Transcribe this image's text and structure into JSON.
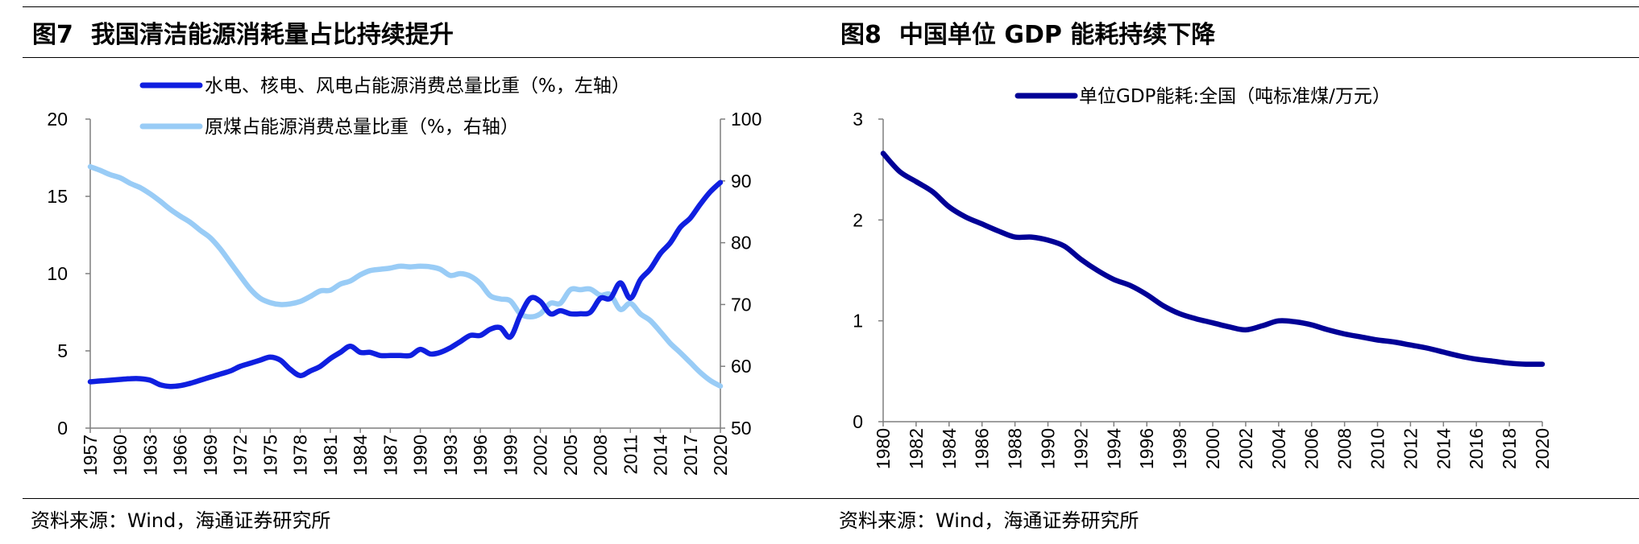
{
  "figures": [
    {
      "number": "图7",
      "title": "我国清洁能源消耗量占比持续提升",
      "source": "资料来源：Wind，海通证券研究所"
    },
    {
      "number": "图8",
      "title": "中国单位 GDP 能耗持续下降",
      "source": "资料来源：Wind，海通证券研究所"
    }
  ],
  "chart_data": [
    {
      "type": "line",
      "title": "",
      "xlabel": "",
      "ylabel": "",
      "legend_position": "top-center",
      "grid": false,
      "x_ticks": [
        "1957",
        "1960",
        "1963",
        "1966",
        "1969",
        "1972",
        "1975",
        "1978",
        "1981",
        "1984",
        "1987",
        "1990",
        "1993",
        "1996",
        "1999",
        "2002",
        "2005",
        "2008",
        "2011",
        "2014",
        "2017",
        "2020"
      ],
      "xlim": [
        1957,
        2020
      ],
      "y_left": {
        "ylim": [
          0,
          20
        ],
        "ticks": [
          "0",
          "5",
          "10",
          "15",
          "20"
        ]
      },
      "y_right": {
        "ylim": [
          50,
          100
        ],
        "ticks": [
          "50",
          "60",
          "70",
          "80",
          "90",
          "100"
        ]
      },
      "series": [
        {
          "name": "水电、核电、风电占能源消费总量比重（%，左轴）",
          "axis": "left",
          "color": "#0f1fe0",
          "x": [
            1957,
            1958,
            1959,
            1960,
            1961,
            1962,
            1963,
            1964,
            1965,
            1966,
            1967,
            1968,
            1969,
            1970,
            1971,
            1972,
            1973,
            1974,
            1975,
            1976,
            1977,
            1978,
            1979,
            1980,
            1981,
            1982,
            1983,
            1984,
            1985,
            1986,
            1987,
            1988,
            1989,
            1990,
            1991,
            1992,
            1993,
            1994,
            1995,
            1996,
            1997,
            1998,
            1999,
            2000,
            2001,
            2002,
            2003,
            2004,
            2005,
            2006,
            2007,
            2008,
            2009,
            2010,
            2011,
            2012,
            2013,
            2014,
            2015,
            2016,
            2017,
            2018,
            2019,
            2020
          ],
          "values": [
            3.0,
            3.05,
            3.1,
            3.15,
            3.2,
            3.2,
            3.1,
            2.8,
            2.7,
            2.75,
            2.9,
            3.1,
            3.3,
            3.5,
            3.7,
            4.0,
            4.2,
            4.4,
            4.6,
            4.4,
            3.8,
            3.4,
            3.7,
            4.0,
            4.5,
            4.9,
            5.3,
            4.9,
            4.9,
            4.7,
            4.7,
            4.7,
            4.7,
            5.1,
            4.8,
            4.9,
            5.2,
            5.6,
            6.0,
            6.0,
            6.4,
            6.5,
            5.9,
            7.3,
            8.4,
            8.2,
            7.4,
            7.6,
            7.4,
            7.4,
            7.5,
            8.4,
            8.4,
            9.4,
            8.4,
            9.6,
            10.3,
            11.3,
            12.0,
            13.0,
            13.6,
            14.5,
            15.3,
            15.9
          ]
        },
        {
          "name": "原煤占能源消费总量比重（%，右轴）",
          "axis": "right",
          "color": "#99ccf6",
          "x": [
            1957,
            1958,
            1959,
            1960,
            1961,
            1962,
            1963,
            1964,
            1965,
            1966,
            1967,
            1968,
            1969,
            1970,
            1971,
            1972,
            1973,
            1974,
            1975,
            1976,
            1977,
            1978,
            1979,
            1980,
            1981,
            1982,
            1983,
            1984,
            1985,
            1986,
            1987,
            1988,
            1989,
            1990,
            1991,
            1992,
            1993,
            1994,
            1995,
            1996,
            1997,
            1998,
            1999,
            2000,
            2001,
            2002,
            2003,
            2004,
            2005,
            2006,
            2007,
            2008,
            2009,
            2010,
            2011,
            2012,
            2013,
            2014,
            2015,
            2016,
            2017,
            2018,
            2019,
            2020
          ],
          "values": [
            92.3,
            91.7,
            91.0,
            90.5,
            89.6,
            88.9,
            87.9,
            86.7,
            85.4,
            84.3,
            83.3,
            82.0,
            80.8,
            79.0,
            76.8,
            74.6,
            72.5,
            71.0,
            70.3,
            70.0,
            70.1,
            70.5,
            71.3,
            72.2,
            72.3,
            73.3,
            73.8,
            74.8,
            75.5,
            75.7,
            75.9,
            76.2,
            76.1,
            76.2,
            76.1,
            75.7,
            74.7,
            75.0,
            74.6,
            73.4,
            71.4,
            70.9,
            70.6,
            68.5,
            68.0,
            68.5,
            70.2,
            70.2,
            72.4,
            72.4,
            72.5,
            71.5,
            71.6,
            69.2,
            70.2,
            68.5,
            67.4,
            65.6,
            63.7,
            62.2,
            60.6,
            59.0,
            57.7,
            56.8
          ]
        }
      ]
    },
    {
      "type": "line",
      "title": "",
      "xlabel": "",
      "ylabel": "",
      "legend_position": "top-center",
      "grid": false,
      "x_ticks": [
        "1980",
        "1982",
        "1984",
        "1986",
        "1988",
        "1990",
        "1992",
        "1994",
        "1996",
        "1998",
        "2000",
        "2002",
        "2004",
        "2006",
        "2008",
        "2010",
        "2012",
        "2014",
        "2016",
        "2018",
        "2020"
      ],
      "xlim": [
        1980,
        2020
      ],
      "ylim": [
        0,
        3
      ],
      "y_ticks": [
        "0",
        "1",
        "2",
        "3"
      ],
      "series": [
        {
          "name": "单位GDP能耗:全国（吨标准煤/万元）",
          "color": "#000096",
          "x": [
            1980,
            1981,
            1982,
            1983,
            1984,
            1985,
            1986,
            1987,
            1988,
            1989,
            1990,
            1991,
            1992,
            1993,
            1994,
            1995,
            1996,
            1997,
            1998,
            1999,
            2000,
            2001,
            2002,
            2003,
            2004,
            2005,
            2006,
            2007,
            2008,
            2009,
            2010,
            2011,
            2012,
            2013,
            2014,
            2015,
            2016,
            2017,
            2018,
            2019,
            2020
          ],
          "values": [
            2.66,
            2.48,
            2.38,
            2.28,
            2.13,
            2.03,
            1.96,
            1.89,
            1.83,
            1.83,
            1.8,
            1.74,
            1.61,
            1.5,
            1.41,
            1.35,
            1.26,
            1.15,
            1.07,
            1.02,
            0.98,
            0.94,
            0.91,
            0.95,
            1.0,
            0.99,
            0.96,
            0.91,
            0.87,
            0.84,
            0.81,
            0.79,
            0.76,
            0.73,
            0.69,
            0.65,
            0.62,
            0.6,
            0.58,
            0.57,
            0.57
          ]
        }
      ]
    }
  ]
}
